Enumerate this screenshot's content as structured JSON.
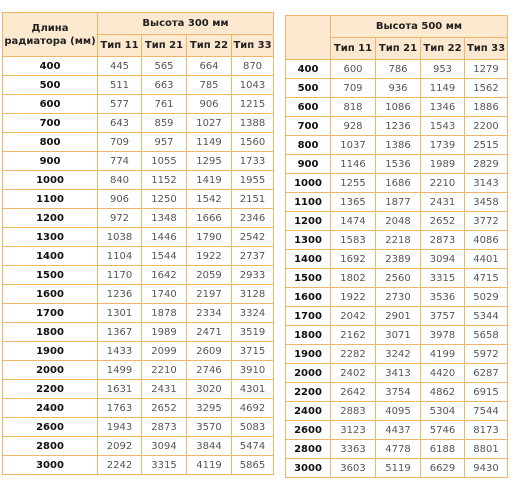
{
  "tables": [
    {
      "length_header": "Длина радиатора (мм)",
      "height_header": "Высота 300 мм",
      "types": [
        "Тип 11",
        "Тип 21",
        "Тип 22",
        "Тип 33"
      ],
      "rows": [
        [
          400,
          445,
          565,
          664,
          870
        ],
        [
          500,
          511,
          663,
          785,
          1043
        ],
        [
          600,
          577,
          761,
          906,
          1215
        ],
        [
          700,
          643,
          859,
          1027,
          1388
        ],
        [
          800,
          709,
          957,
          1149,
          1560
        ],
        [
          900,
          774,
          1055,
          1295,
          1733
        ],
        [
          1000,
          840,
          1152,
          1419,
          1955
        ],
        [
          1100,
          906,
          1250,
          1542,
          2151
        ],
        [
          1200,
          972,
          1348,
          1666,
          2346
        ],
        [
          1300,
          1038,
          1446,
          1790,
          2542
        ],
        [
          1400,
          1104,
          1544,
          1922,
          2737
        ],
        [
          1500,
          1170,
          1642,
          2059,
          2933
        ],
        [
          1600,
          1236,
          1740,
          2197,
          3128
        ],
        [
          1700,
          1301,
          1878,
          2334,
          3324
        ],
        [
          1800,
          1367,
          1989,
          2471,
          3519
        ],
        [
          1900,
          1433,
          2099,
          2609,
          3715
        ],
        [
          2000,
          1499,
          2210,
          2746,
          3910
        ],
        [
          2200,
          1631,
          2431,
          3020,
          4301
        ],
        [
          2400,
          1763,
          2652,
          3295,
          4692
        ],
        [
          2600,
          1943,
          2873,
          3570,
          5083
        ],
        [
          2800,
          2092,
          3094,
          3844,
          5474
        ],
        [
          3000,
          2242,
          3315,
          4119,
          5865
        ]
      ]
    },
    {
      "height_header": "Высота 500 мм",
      "types": [
        "Тип 11",
        "Тип 21",
        "Тип 22",
        "Тип 33"
      ],
      "rows": [
        [
          400,
          600,
          786,
          953,
          1279
        ],
        [
          500,
          709,
          936,
          1149,
          1562
        ],
        [
          600,
          818,
          1086,
          1346,
          1886
        ],
        [
          700,
          928,
          1236,
          1543,
          2200
        ],
        [
          800,
          1037,
          1386,
          1739,
          2515
        ],
        [
          900,
          1146,
          1536,
          1989,
          2829
        ],
        [
          1000,
          1255,
          1686,
          2210,
          3143
        ],
        [
          1100,
          1365,
          1877,
          2431,
          3458
        ],
        [
          1200,
          1474,
          2048,
          2652,
          3772
        ],
        [
          1300,
          1583,
          2218,
          2873,
          4086
        ],
        [
          1400,
          1692,
          2389,
          3094,
          4401
        ],
        [
          1500,
          1802,
          2560,
          3315,
          4715
        ],
        [
          1600,
          1922,
          2730,
          3536,
          5029
        ],
        [
          1700,
          2042,
          2901,
          3757,
          5344
        ],
        [
          1800,
          2162,
          3071,
          3978,
          5658
        ],
        [
          1900,
          2282,
          3242,
          4199,
          5972
        ],
        [
          2000,
          2402,
          3413,
          4420,
          6287
        ],
        [
          2200,
          2642,
          3754,
          4862,
          6915
        ],
        [
          2400,
          2883,
          4095,
          5304,
          7544
        ],
        [
          2600,
          3123,
          4437,
          5746,
          8173
        ],
        [
          2800,
          3363,
          4778,
          6188,
          8801
        ],
        [
          3000,
          3603,
          5119,
          6629,
          9430
        ]
      ]
    }
  ]
}
